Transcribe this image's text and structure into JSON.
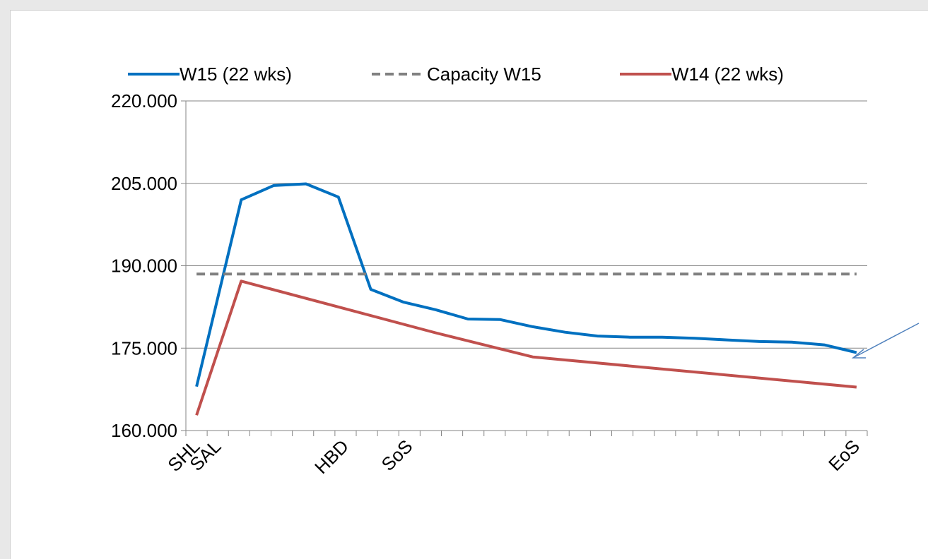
{
  "chart_data": {
    "type": "line",
    "title": "",
    "xlabel": "",
    "ylabel": "",
    "ylim": [
      160000,
      220000
    ],
    "yticks": [
      "220.000",
      "205.000",
      "190.000",
      "175.000",
      "160.000"
    ],
    "ytick_values": [
      220000,
      205000,
      190000,
      175000,
      160000
    ],
    "grid": true,
    "legend": "top",
    "x_labels": [
      "SHL",
      "SAL",
      "",
      "",
      "",
      "",
      "",
      "HBD",
      "",
      "",
      "SoS",
      "",
      "",
      "",
      "",
      "",
      "",
      "",
      "",
      "",
      "",
      "",
      "",
      "",
      "",
      "",
      "",
      "",
      "",
      "",
      "",
      "EoS"
    ],
    "series": [
      {
        "name": "W15 (22 wks)",
        "color": "#0070C0",
        "dash": false,
        "values": [
          168000,
          202000,
          204600,
          204900,
          202500,
          185700,
          183400,
          182000,
          180300,
          180200,
          178900,
          177900,
          177200,
          177000,
          177000,
          176800,
          176500,
          176200,
          176100,
          175600,
          174200
        ]
      },
      {
        "name": "Capacity W15",
        "color": "#808080",
        "dash": true,
        "values": [
          188500,
          188500,
          188500,
          188500,
          188500,
          188500,
          188500,
          188500,
          188500,
          188500,
          188500,
          188500,
          188500,
          188500,
          188500,
          188500,
          188500,
          188500,
          188500,
          188500,
          188500
        ]
      },
      {
        "name": "W14 (22 wks)",
        "color": "#C0504D",
        "dash": false,
        "values": [
          162800,
          187200,
          177800,
          173400,
          167900
        ]
      }
    ]
  }
}
